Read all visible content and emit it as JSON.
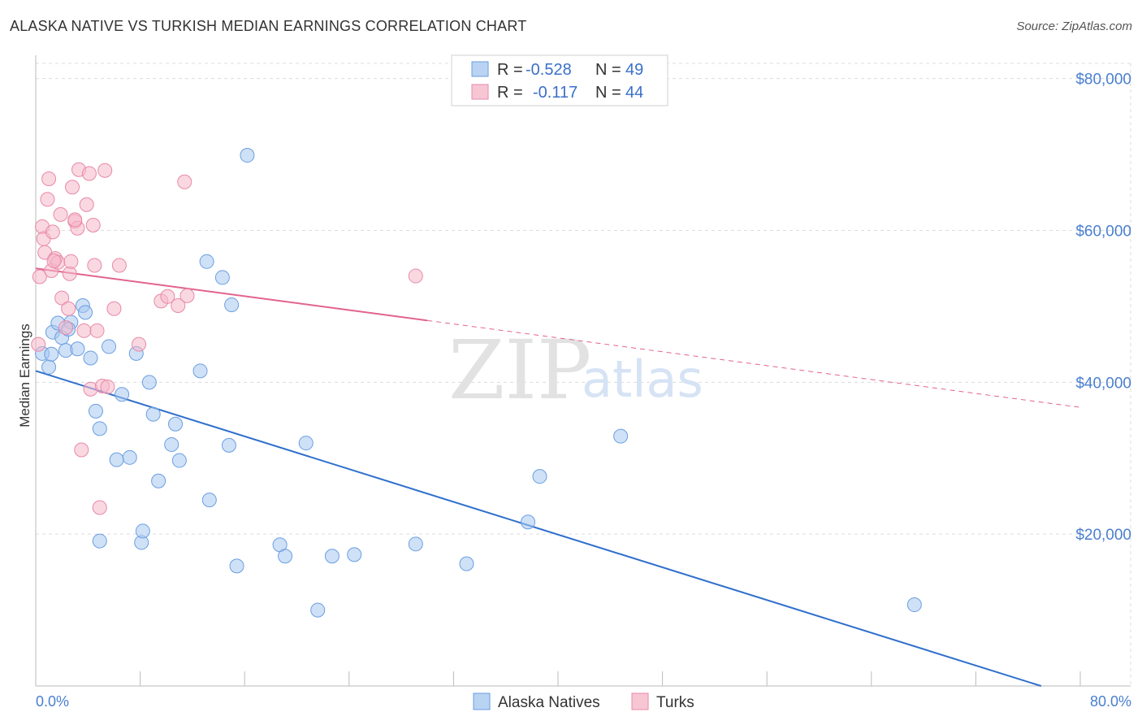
{
  "title": "ALASKA NATIVE VS TURKISH MEDIAN EARNINGS CORRELATION CHART",
  "source": "Source: ZipAtlas.com",
  "watermark": {
    "zip": "ZIP",
    "atlas": "atlas"
  },
  "legend_top": [
    {
      "r_label": "R =",
      "r_value": "-0.528",
      "n_label": "N =",
      "n_value": "49",
      "color": "#a8c8f0"
    },
    {
      "r_label": "R =",
      "r_value": "-0.117",
      "n_label": "N =",
      "n_value": "44",
      "color": "#f5b8cb"
    }
  ],
  "chart_data": {
    "type": "scatter",
    "title": "ALASKA NATIVE VS TURKISH MEDIAN EARNINGS CORRELATION CHART",
    "xlabel": "",
    "ylabel": "Median Earnings",
    "xlim": [
      0,
      80
    ],
    "ylim": [
      0,
      82000
    ],
    "x_tick_labels": [
      "0.0%",
      "80.0%"
    ],
    "y_ticks": [
      20000,
      40000,
      60000,
      80000
    ],
    "y_tick_labels": [
      "$20,000",
      "$40,000",
      "$60,000",
      "$80,000"
    ],
    "grid": true,
    "series": [
      {
        "name": "Alaska Natives",
        "color": "#a8c8f0",
        "stroke": "#6a9ee0",
        "trend_color": "#2f6fcc",
        "trend": {
          "x0": 0,
          "y0": 41500,
          "x1": 77,
          "y1": 0,
          "solid_until": 77
        },
        "points": [
          [
            0.5,
            43800
          ],
          [
            1.0,
            42000
          ],
          [
            1.3,
            46600
          ],
          [
            1.7,
            47800
          ],
          [
            2.0,
            45900
          ],
          [
            2.3,
            44200
          ],
          [
            2.7,
            47900
          ],
          [
            3.2,
            44400
          ],
          [
            3.6,
            50100
          ],
          [
            3.8,
            49200
          ],
          [
            4.2,
            43200
          ],
          [
            4.6,
            36200
          ],
          [
            4.9,
            33900
          ],
          [
            5.6,
            44700
          ],
          [
            6.2,
            29800
          ],
          [
            6.6,
            38400
          ],
          [
            7.2,
            30100
          ],
          [
            7.7,
            43800
          ],
          [
            8.1,
            18900
          ],
          [
            8.2,
            20400
          ],
          [
            8.7,
            40000
          ],
          [
            9.0,
            35800
          ],
          [
            9.4,
            27000
          ],
          [
            10.4,
            31800
          ],
          [
            10.7,
            34500
          ],
          [
            11.0,
            29700
          ],
          [
            12.6,
            41500
          ],
          [
            13.1,
            55900
          ],
          [
            13.3,
            24500
          ],
          [
            14.3,
            53800
          ],
          [
            14.8,
            31700
          ],
          [
            15.0,
            50200
          ],
          [
            15.4,
            15800
          ],
          [
            16.2,
            69900
          ],
          [
            18.7,
            18600
          ],
          [
            19.1,
            17100
          ],
          [
            20.7,
            32000
          ],
          [
            21.6,
            10000
          ],
          [
            22.7,
            17100
          ],
          [
            24.4,
            17300
          ],
          [
            29.1,
            18700
          ],
          [
            33.0,
            16100
          ],
          [
            37.7,
            21600
          ],
          [
            38.6,
            27600
          ],
          [
            44.8,
            32900
          ],
          [
            67.3,
            10700
          ],
          [
            4.9,
            19100
          ],
          [
            1.2,
            43700
          ],
          [
            2.5,
            47000
          ]
        ]
      },
      {
        "name": "Turks",
        "color": "#f5b8cb",
        "stroke": "#e889a6",
        "trend_color": "#e2638f",
        "trend": {
          "x0": 0,
          "y0": 55000,
          "x1": 80,
          "y1": 36700,
          "solid_until": 30
        },
        "points": [
          [
            0.2,
            45000
          ],
          [
            0.3,
            53900
          ],
          [
            0.5,
            60500
          ],
          [
            0.6,
            58900
          ],
          [
            0.7,
            57100
          ],
          [
            0.9,
            64100
          ],
          [
            1.0,
            66800
          ],
          [
            1.2,
            54700
          ],
          [
            1.3,
            59800
          ],
          [
            1.5,
            56300
          ],
          [
            1.7,
            55800
          ],
          [
            1.9,
            62100
          ],
          [
            2.0,
            51100
          ],
          [
            2.3,
            47200
          ],
          [
            2.5,
            49700
          ],
          [
            2.6,
            54300
          ],
          [
            2.7,
            55900
          ],
          [
            2.8,
            65700
          ],
          [
            3.0,
            61200
          ],
          [
            3.2,
            60300
          ],
          [
            3.3,
            68000
          ],
          [
            3.5,
            31100
          ],
          [
            3.7,
            46800
          ],
          [
            3.9,
            63400
          ],
          [
            4.1,
            67500
          ],
          [
            4.2,
            39100
          ],
          [
            4.4,
            60700
          ],
          [
            4.5,
            55400
          ],
          [
            4.7,
            46800
          ],
          [
            4.9,
            23500
          ],
          [
            5.1,
            39500
          ],
          [
            5.3,
            67900
          ],
          [
            5.5,
            39400
          ],
          [
            6.0,
            49700
          ],
          [
            6.4,
            55400
          ],
          [
            7.9,
            45000
          ],
          [
            9.6,
            50700
          ],
          [
            10.1,
            51300
          ],
          [
            10.9,
            50100
          ],
          [
            11.4,
            66400
          ],
          [
            11.6,
            51400
          ],
          [
            29.1,
            54000
          ],
          [
            3.0,
            61400
          ],
          [
            1.4,
            56000
          ]
        ]
      }
    ]
  },
  "legend_bottom": [
    {
      "label": "Alaska Natives",
      "color": "#a8c8f0"
    },
    {
      "label": "Turks",
      "color": "#f5b8cb"
    }
  ]
}
